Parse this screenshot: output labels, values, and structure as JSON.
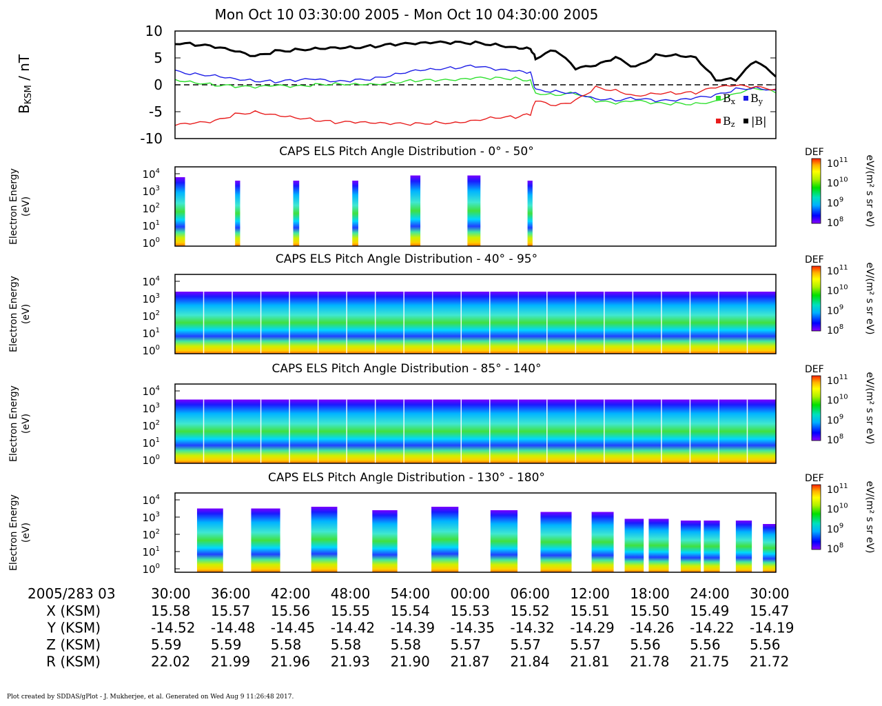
{
  "title": "Mon Oct 10 03:30:00 2005 - Mon Oct 10 04:30:00 2005",
  "footer": "Plot created by SDDAS/gPlot - J. Mukherjee, et al.  Generated on Wed Aug 9 11:26:48 2017.",
  "colors": {
    "bx": "#2ee02e",
    "by": "#1c1ce6",
    "bz": "#e81c1c",
    "bmag": "#000000",
    "colorbar": [
      "#8a00ff",
      "#0000ff",
      "#00b0ff",
      "#00e0c0",
      "#00e000",
      "#b0f000",
      "#ffff00",
      "#ffb000",
      "#ff4000"
    ]
  },
  "chart_data": [
    {
      "type": "line",
      "ylabel_main": "B",
      "ylabel_sub": "KSM",
      "ylabel_unit": " / nT",
      "ylim": [
        -10,
        10
      ],
      "yticks": [
        "10",
        "5",
        "0",
        "-5",
        "-10"
      ],
      "xlim": [
        30,
        90
      ],
      "zero_line": "dashed",
      "legend": [
        "B",
        "x",
        "B",
        "y",
        "B",
        "z",
        "|B|"
      ],
      "series": [
        {
          "name": "Bx",
          "x": [
            30,
            32,
            34,
            36,
            38,
            40,
            42,
            44,
            46,
            48,
            50,
            52,
            54,
            56,
            58,
            60,
            62,
            64,
            65.5,
            66,
            68,
            70,
            72,
            74,
            76,
            78,
            80,
            82,
            84,
            86,
            88,
            90
          ],
          "y": [
            1.0,
            0.5,
            0.0,
            -0.3,
            -0.5,
            -0.2,
            -0.4,
            0.0,
            0.2,
            0.2,
            0.2,
            0.5,
            0.8,
            0.8,
            0.8,
            1.2,
            1.2,
            1.2,
            0.8,
            -1.5,
            -1.8,
            -1.5,
            -3.0,
            -3.5,
            -3.0,
            -3.5,
            -3.5,
            -3.5,
            -3.0,
            -1.5,
            -0.5,
            -1.5
          ]
        },
        {
          "name": "By",
          "x": [
            30,
            32,
            34,
            36,
            38,
            40,
            42,
            44,
            46,
            48,
            50,
            52,
            54,
            56,
            58,
            60,
            62,
            64,
            65.5,
            66,
            68,
            70,
            72,
            74,
            76,
            78,
            80,
            82,
            84,
            86,
            88,
            90
          ],
          "y": [
            2.5,
            2.0,
            1.8,
            1.2,
            0.8,
            0.6,
            0.8,
            1.0,
            0.5,
            0.8,
            1.2,
            2.0,
            2.8,
            3.0,
            3.2,
            3.5,
            2.8,
            2.5,
            2.2,
            -1.0,
            -1.2,
            -1.5,
            -2.5,
            -2.8,
            -2.5,
            -3.0,
            -3.0,
            -2.5,
            -2.0,
            -0.8,
            -0.5,
            -1.0
          ]
        },
        {
          "name": "Bz",
          "x": [
            30,
            32,
            34,
            36,
            38,
            40,
            42,
            44,
            46,
            48,
            50,
            52,
            54,
            56,
            58,
            60,
            62,
            64,
            65.5,
            66,
            68,
            70,
            72,
            74,
            76,
            78,
            80,
            82,
            84,
            86,
            88,
            90
          ],
          "y": [
            -7.5,
            -7.2,
            -6.8,
            -5.5,
            -5.0,
            -5.5,
            -6.0,
            -6.5,
            -7.0,
            -7.0,
            -7.2,
            -7.3,
            -7.3,
            -7.0,
            -7.0,
            -6.5,
            -6.0,
            -6.0,
            -5.5,
            -3.0,
            -4.0,
            -3.0,
            -0.5,
            -1.0,
            -2.0,
            -1.5,
            -1.5,
            -1.5,
            -0.5,
            -0.2,
            -0.5,
            -0.8
          ]
        },
        {
          "name": "|B|",
          "x": [
            30,
            32,
            34,
            36,
            38,
            40,
            42,
            44,
            46,
            48,
            50,
            52,
            54,
            56,
            58,
            60,
            62,
            64,
            65.5,
            66,
            68,
            70,
            72,
            74,
            76,
            78,
            80,
            82,
            84,
            86,
            88,
            90
          ],
          "y": [
            7.8,
            7.5,
            7.0,
            6.2,
            5.2,
            6.2,
            6.5,
            6.8,
            7.0,
            7.0,
            7.2,
            7.5,
            7.6,
            7.8,
            7.8,
            7.8,
            7.5,
            7.0,
            6.8,
            5.0,
            6.5,
            3.0,
            3.5,
            5.0,
            3.2,
            5.5,
            5.6,
            5.2,
            1.0,
            1.0,
            4.5,
            1.5
          ]
        }
      ]
    },
    {
      "type": "heatmap",
      "title": "CAPS ELS Pitch Angle Distribution - 0° - 50°",
      "ylabel": "Electron Energy",
      "yunit": "(eV)",
      "yticks": [
        "10",
        "10",
        "10",
        "10",
        "10"
      ],
      "yexp": [
        "4",
        "3",
        "2",
        "1",
        "0"
      ],
      "ylim_log10": [
        -0.2,
        4.4
      ],
      "xlim": [
        30,
        90
      ],
      "colorbar_label": "DEF",
      "colorbar_unit": "eV/(m² s sr eV)",
      "colorbar_ticks": [
        "10",
        "10",
        "10",
        "10"
      ],
      "colorbar_exp": [
        "11",
        "10",
        "9",
        "8"
      ],
      "blocks": [
        {
          "x0": 30.0,
          "x1": 31.0,
          "top": 3.8
        },
        {
          "x0": 36.0,
          "x1": 36.5,
          "top": 3.6
        },
        {
          "x0": 41.8,
          "x1": 42.4,
          "top": 3.6
        },
        {
          "x0": 47.7,
          "x1": 48.3,
          "top": 3.6
        },
        {
          "x0": 53.5,
          "x1": 54.5,
          "top": 3.9
        },
        {
          "x0": 59.2,
          "x1": 60.5,
          "top": 3.9
        },
        {
          "x0": 65.2,
          "x1": 65.7,
          "top": 3.6
        }
      ]
    },
    {
      "type": "heatmap",
      "title": "CAPS ELS Pitch Angle Distribution - 40° - 95°",
      "ylabel": "Electron Energy",
      "yunit": "(eV)",
      "yticks": [
        "10",
        "10",
        "10",
        "10",
        "10"
      ],
      "yexp": [
        "4",
        "3",
        "2",
        "1",
        "0"
      ],
      "ylim_log10": [
        -0.2,
        4.4
      ],
      "xlim": [
        30,
        90
      ],
      "colorbar_label": "DEF",
      "colorbar_unit": "eV/(m² s sr eV)",
      "colorbar_ticks": [
        "10",
        "10",
        "10",
        "10"
      ],
      "colorbar_exp": [
        "11",
        "10",
        "9",
        "8"
      ],
      "blocks": [
        {
          "x0": 30.0,
          "x1": 90.0,
          "top": 3.4
        }
      ]
    },
    {
      "type": "heatmap",
      "title": "CAPS ELS Pitch Angle Distribution - 85° - 140°",
      "ylabel": "Electron Energy",
      "yunit": "(eV)",
      "yticks": [
        "10",
        "10",
        "10",
        "10",
        "10"
      ],
      "yexp": [
        "4",
        "3",
        "2",
        "1",
        "0"
      ],
      "ylim_log10": [
        -0.2,
        4.4
      ],
      "xlim": [
        30,
        90
      ],
      "colorbar_label": "DEF",
      "colorbar_unit": "eV/(m² s sr eV)",
      "colorbar_ticks": [
        "10",
        "10",
        "10",
        "10"
      ],
      "colorbar_exp": [
        "11",
        "10",
        "9",
        "8"
      ],
      "blocks": [
        {
          "x0": 30.0,
          "x1": 90.0,
          "top": 3.5
        }
      ]
    },
    {
      "type": "heatmap",
      "title": "CAPS ELS Pitch Angle Distribution - 130° - 180°",
      "ylabel": "Electron Energy",
      "yunit": "(eV)",
      "yticks": [
        "10",
        "10",
        "10",
        "10",
        "10"
      ],
      "yexp": [
        "4",
        "3",
        "2",
        "1",
        "0"
      ],
      "ylim_log10": [
        -0.2,
        4.4
      ],
      "xlim": [
        30,
        90
      ],
      "colorbar_label": "DEF",
      "colorbar_unit": "eV/(m² s sr eV)",
      "colorbar_ticks": [
        "10",
        "10",
        "10",
        "10"
      ],
      "colorbar_exp": [
        "11",
        "10",
        "9",
        "8"
      ],
      "blocks": [
        {
          "x0": 32.2,
          "x1": 34.8,
          "top": 3.5
        },
        {
          "x0": 37.6,
          "x1": 40.5,
          "top": 3.5
        },
        {
          "x0": 43.6,
          "x1": 46.2,
          "top": 3.6
        },
        {
          "x0": 49.7,
          "x1": 52.2,
          "top": 3.4
        },
        {
          "x0": 55.6,
          "x1": 58.3,
          "top": 3.6
        },
        {
          "x0": 61.5,
          "x1": 64.2,
          "top": 3.4
        },
        {
          "x0": 66.5,
          "x1": 69.6,
          "top": 3.3
        },
        {
          "x0": 71.6,
          "x1": 73.8,
          "top": 3.3
        },
        {
          "x0": 74.9,
          "x1": 76.8,
          "top": 2.9
        },
        {
          "x0": 77.3,
          "x1": 79.3,
          "top": 2.9
        },
        {
          "x0": 80.5,
          "x1": 82.5,
          "top": 2.8
        },
        {
          "x0": 82.8,
          "x1": 84.4,
          "top": 2.8
        },
        {
          "x0": 86.0,
          "x1": 87.6,
          "top": 2.8
        },
        {
          "x0": 88.7,
          "x1": 90.0,
          "top": 2.6
        }
      ]
    }
  ],
  "ephemeris": {
    "time_label": "2005/283 03",
    "times": [
      "30:00",
      "36:00",
      "42:00",
      "48:00",
      "54:00",
      "00:00",
      "06:00",
      "12:00",
      "18:00",
      "24:00",
      "30:00"
    ],
    "rows": [
      {
        "label": "X (KSM)",
        "values": [
          "15.58",
          "15.57",
          "15.56",
          "15.55",
          "15.54",
          "15.53",
          "15.52",
          "15.51",
          "15.50",
          "15.49",
          "15.47"
        ]
      },
      {
        "label": "Y (KSM)",
        "values": [
          "-14.52",
          "-14.48",
          "-14.45",
          "-14.42",
          "-14.39",
          "-14.35",
          "-14.32",
          "-14.29",
          "-14.26",
          "-14.22",
          "-14.19"
        ]
      },
      {
        "label": "Z (KSM)",
        "values": [
          "5.59",
          "5.59",
          "5.58",
          "5.58",
          "5.58",
          "5.57",
          "5.57",
          "5.57",
          "5.56",
          "5.56",
          "5.56"
        ]
      },
      {
        "label": "R (KSM)",
        "values": [
          "22.02",
          "21.99",
          "21.96",
          "21.93",
          "21.90",
          "21.87",
          "21.84",
          "21.81",
          "21.78",
          "21.75",
          "21.72"
        ]
      }
    ]
  }
}
